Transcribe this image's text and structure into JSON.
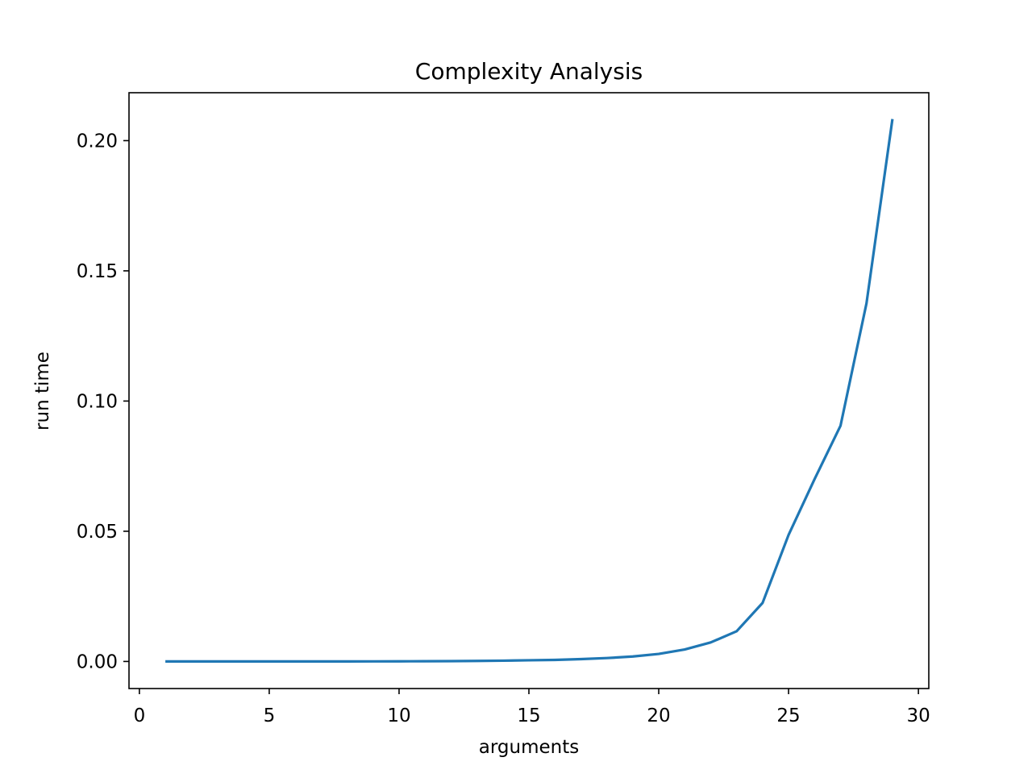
{
  "chart_data": {
    "type": "line",
    "title": "Complexity Analysis",
    "xlabel": "arguments",
    "ylabel": "run time",
    "xlim": [
      -0.4,
      30.4
    ],
    "ylim": [
      -0.0104,
      0.2184
    ],
    "x_ticks": [
      0,
      5,
      10,
      15,
      20,
      25,
      30
    ],
    "x_tick_labels": [
      "0",
      "5",
      "10",
      "15",
      "20",
      "25",
      "30"
    ],
    "y_ticks": [
      0.0,
      0.05,
      0.1,
      0.15,
      0.2
    ],
    "y_tick_labels": [
      "0.00",
      "0.05",
      "0.10",
      "0.15",
      "0.20"
    ],
    "grid": false,
    "line_color": "#1f77b4",
    "series": [
      {
        "x": [
          1,
          2,
          3,
          4,
          5,
          6,
          7,
          8,
          9,
          10,
          11,
          12,
          13,
          14,
          15,
          16,
          17,
          18,
          19,
          20,
          21,
          22,
          23,
          24,
          25,
          26,
          27,
          28,
          29
        ],
        "values": [
          1e-06,
          1e-06,
          2e-06,
          3e-06,
          5e-06,
          8e-06,
          1.2e-05,
          2e-05,
          3e-05,
          5e-05,
          8e-05,
          0.00012,
          0.0002,
          0.0003,
          0.00045,
          0.0006,
          0.0009,
          0.0013,
          0.0019,
          0.0029,
          0.0046,
          0.0073,
          0.0116,
          0.0225,
          0.0486,
          0.07,
          0.0905,
          0.1375,
          0.2083
        ]
      }
    ]
  }
}
